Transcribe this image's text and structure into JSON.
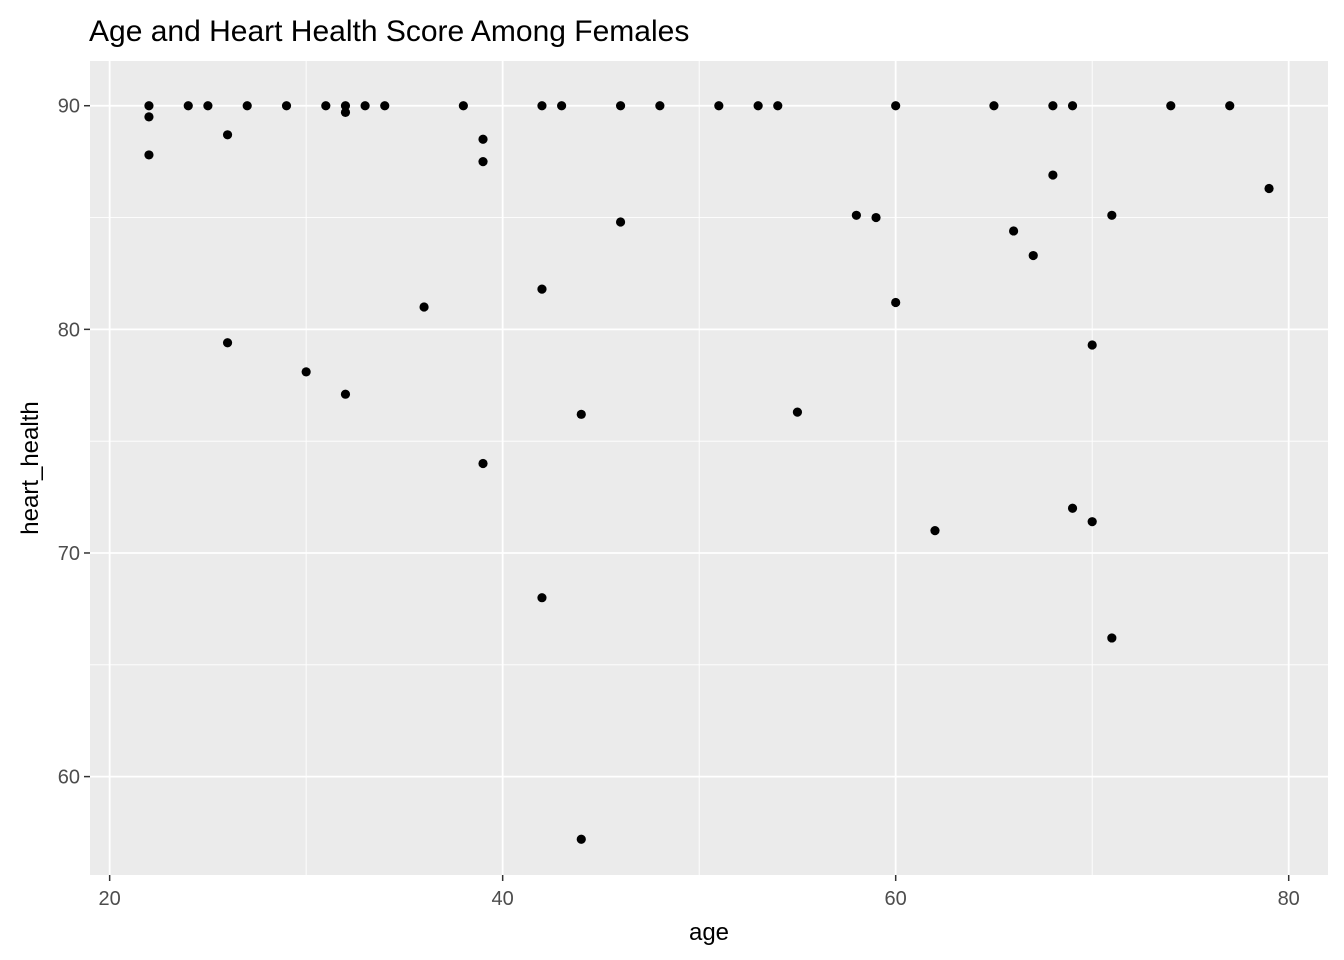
{
  "chart_data": {
    "type": "scatter",
    "title": "Age and Heart Health Score Among Females",
    "xlabel": "age",
    "ylabel": "heart_health",
    "xlim": [
      19,
      82
    ],
    "ylim": [
      55.6,
      92.0
    ],
    "x_ticks": [
      20,
      40,
      60,
      80
    ],
    "y_ticks": [
      60,
      70,
      80,
      90
    ],
    "x_tick_labels": [
      "20",
      "40",
      "60",
      "80"
    ],
    "y_tick_labels": [
      "60",
      "70",
      "80",
      "90"
    ],
    "grid": true,
    "panel_background": "#ebebeb",
    "grid_color": "#ffffff",
    "point_color": "#000000",
    "points": [
      {
        "x": 22,
        "y": 90.0
      },
      {
        "x": 22,
        "y": 89.5
      },
      {
        "x": 22,
        "y": 87.8
      },
      {
        "x": 24,
        "y": 90.0
      },
      {
        "x": 25,
        "y": 90.0
      },
      {
        "x": 26,
        "y": 88.7
      },
      {
        "x": 26,
        "y": 79.4
      },
      {
        "x": 27,
        "y": 90.0
      },
      {
        "x": 29,
        "y": 90.0
      },
      {
        "x": 30,
        "y": 78.1
      },
      {
        "x": 31,
        "y": 90.0
      },
      {
        "x": 32,
        "y": 90.0
      },
      {
        "x": 32,
        "y": 89.7
      },
      {
        "x": 32,
        "y": 77.1
      },
      {
        "x": 33,
        "y": 90.0
      },
      {
        "x": 34,
        "y": 90.0
      },
      {
        "x": 36,
        "y": 81.0
      },
      {
        "x": 38,
        "y": 90.0
      },
      {
        "x": 39,
        "y": 88.5
      },
      {
        "x": 39,
        "y": 87.5
      },
      {
        "x": 39,
        "y": 74.0
      },
      {
        "x": 42,
        "y": 90.0
      },
      {
        "x": 42,
        "y": 81.8
      },
      {
        "x": 42,
        "y": 68.0
      },
      {
        "x": 43,
        "y": 90.0
      },
      {
        "x": 44,
        "y": 76.2
      },
      {
        "x": 44,
        "y": 57.2
      },
      {
        "x": 46,
        "y": 90.0
      },
      {
        "x": 46,
        "y": 84.8
      },
      {
        "x": 48,
        "y": 90.0
      },
      {
        "x": 51,
        "y": 90.0
      },
      {
        "x": 53,
        "y": 90.0
      },
      {
        "x": 54,
        "y": 90.0
      },
      {
        "x": 55,
        "y": 76.3
      },
      {
        "x": 58,
        "y": 85.1
      },
      {
        "x": 59,
        "y": 85.0
      },
      {
        "x": 60,
        "y": 90.0
      },
      {
        "x": 60,
        "y": 81.2
      },
      {
        "x": 62,
        "y": 71.0
      },
      {
        "x": 65,
        "y": 90.0
      },
      {
        "x": 66,
        "y": 84.4
      },
      {
        "x": 67,
        "y": 83.3
      },
      {
        "x": 68,
        "y": 90.0
      },
      {
        "x": 68,
        "y": 86.9
      },
      {
        "x": 69,
        "y": 90.0
      },
      {
        "x": 69,
        "y": 72.0
      },
      {
        "x": 70,
        "y": 79.3
      },
      {
        "x": 70,
        "y": 71.4
      },
      {
        "x": 71,
        "y": 85.1
      },
      {
        "x": 71,
        "y": 66.2
      },
      {
        "x": 74,
        "y": 90.0
      },
      {
        "x": 77,
        "y": 90.0
      },
      {
        "x": 79,
        "y": 86.3
      }
    ]
  }
}
